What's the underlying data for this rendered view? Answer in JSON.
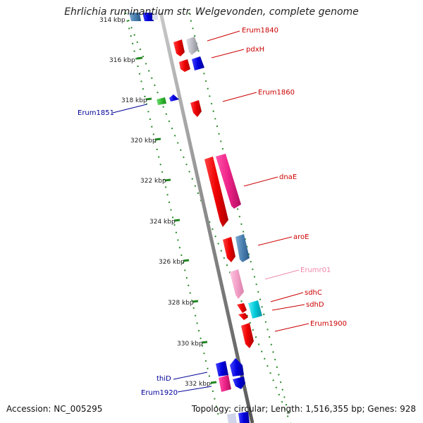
{
  "title": "Ehrlichia ruminantium str. Welgevonden, complete genome",
  "footer": {
    "accession": "Accession: NC_005295",
    "summary": "Topology: circular; Length: 1,516,355 bp; Genes: 928"
  },
  "ruler": {
    "labels": [
      "314 kbp",
      "316 kbp",
      "318 kbp",
      "320 kbp",
      "322 kbp",
      "324 kbp",
      "326 kbp",
      "328 kbp",
      "330 kbp",
      "332 kbp"
    ]
  },
  "gene_labels": [
    {
      "text": "Erum1840",
      "color": "#cc0000"
    },
    {
      "text": "pdxH",
      "color": "#cc0000"
    },
    {
      "text": "Erum1860",
      "color": "#cc0000"
    },
    {
      "text": "Erum1851",
      "color": "#000099"
    },
    {
      "text": "dnaE",
      "color": "#cc0000"
    },
    {
      "text": "aroE",
      "color": "#cc0000"
    },
    {
      "text": "Erumr01",
      "color": "#ee88aa"
    },
    {
      "text": "sdhC",
      "color": "#cc0000"
    },
    {
      "text": "sdhD",
      "color": "#cc0000"
    },
    {
      "text": "Erum1900",
      "color": "#cc0000"
    },
    {
      "text": "thiD",
      "color": "#000099"
    },
    {
      "text": "Erum1920",
      "color": "#000099"
    }
  ],
  "colors": {
    "backbone": "#8a8a8a",
    "dotted_track": "#2a8a2a",
    "red_gene": "#ee0000",
    "blue_gene": "#0000dd",
    "pink_gene": "#ee2288",
    "light_pink_gene": "#f4a0c8",
    "steel_blue_gene": "#4a80b0",
    "grey_gene": "#b8b8c0",
    "cyan_gene": "#00c8d8",
    "green_gene": "#33bb33"
  }
}
